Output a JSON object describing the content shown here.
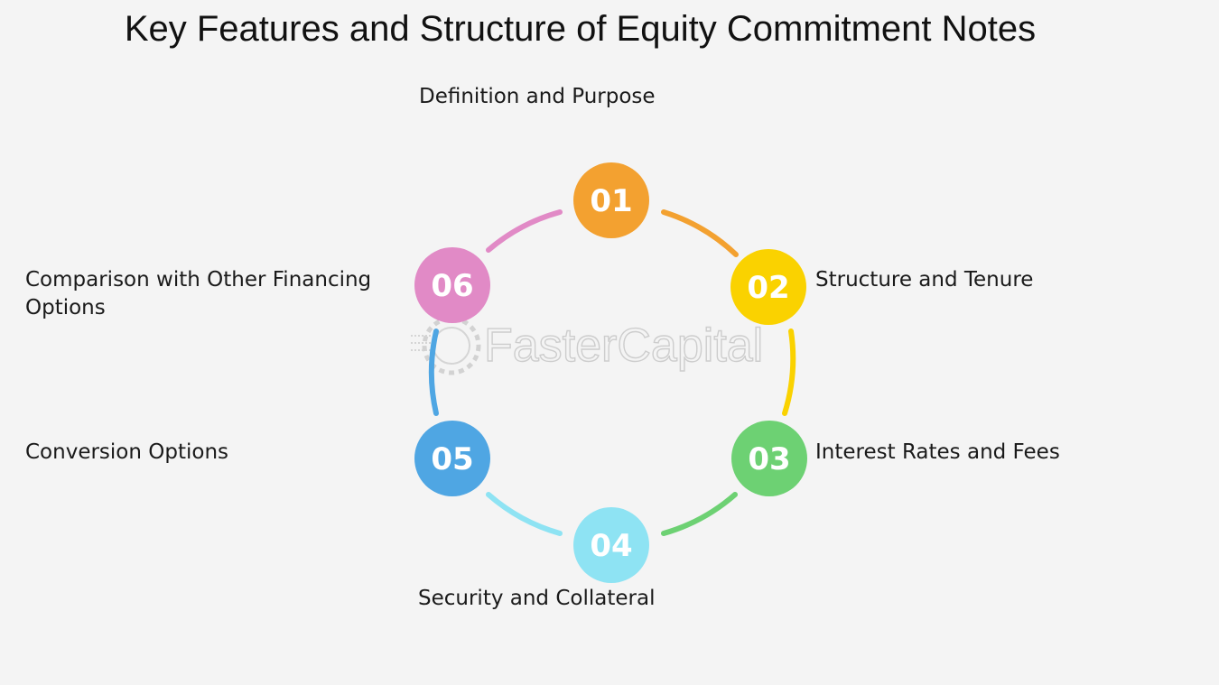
{
  "title": "Key Features and Structure of Equity Commitment Notes",
  "steps": [
    {
      "number": "01",
      "label": "Definition and Purpose",
      "color": "#f3a130"
    },
    {
      "number": "02",
      "label": "Structure and Tenure",
      "color": "#fad200"
    },
    {
      "number": "03",
      "label": "Interest Rates and Fees",
      "color": "#6dd173"
    },
    {
      "number": "04",
      "label": "Security and Collateral",
      "color": "#8ee3f3"
    },
    {
      "number": "05",
      "label": "Conversion Options",
      "color": "#4fa6e3"
    },
    {
      "number": "06",
      "label": "Comparison with Other Financing Options",
      "color": "#e18ac6"
    }
  ],
  "watermark": {
    "text": "FasterCapital",
    "icon": "gear-icon"
  }
}
